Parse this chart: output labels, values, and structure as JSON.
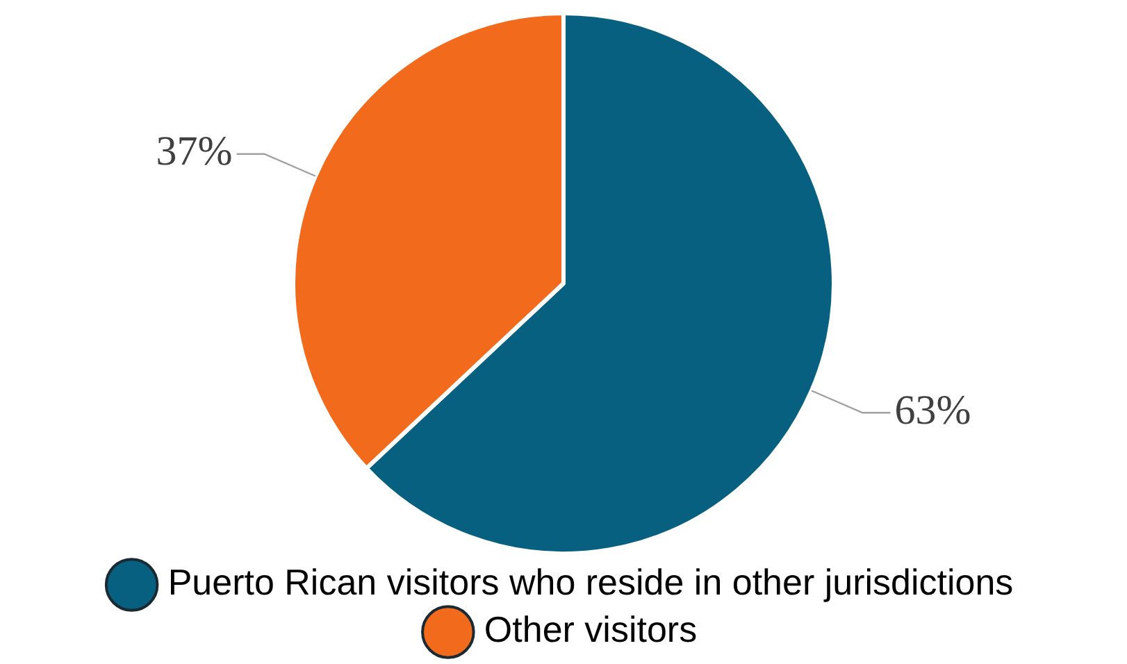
{
  "chart_data": {
    "type": "pie",
    "categories": [
      "Puerto Rican visitors who reside in other jurisdictions",
      "Other visitors"
    ],
    "values": [
      63,
      37
    ],
    "colors": [
      "#07607f",
      "#f26b1d"
    ],
    "value_labels": [
      "63%",
      "37%"
    ],
    "legend": "bottom"
  }
}
